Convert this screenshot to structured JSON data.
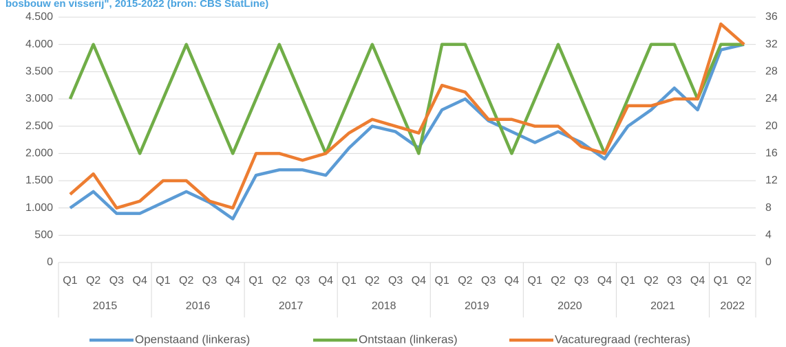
{
  "chart_data": {
    "type": "line",
    "title": "bosbouw en visserij\", 2015-2022 (bron: CBS StatLine)",
    "categories": [
      "Q1",
      "Q2",
      "Q3",
      "Q4",
      "Q1",
      "Q2",
      "Q3",
      "Q4",
      "Q1",
      "Q2",
      "Q3",
      "Q4",
      "Q1",
      "Q2",
      "Q3",
      "Q4",
      "Q1",
      "Q2",
      "Q3",
      "Q4",
      "Q1",
      "Q2",
      "Q3",
      "Q4",
      "Q1",
      "Q2",
      "Q3",
      "Q4",
      "Q1",
      "Q2"
    ],
    "groups": [
      "2015",
      "2016",
      "2017",
      "2018",
      "2019",
      "2020",
      "2021",
      "2022"
    ],
    "series": [
      {
        "name": "Openstaand (linkeras)",
        "color": "#5b9bd5",
        "values": [
          1000,
          1300,
          900,
          900,
          1100,
          1300,
          1100,
          800,
          1600,
          1700,
          1700,
          1600,
          2100,
          2500,
          2400,
          2100,
          2800,
          3000,
          2600,
          2400,
          2200,
          2400,
          2200,
          1900,
          2500,
          2800,
          3200,
          2800,
          3900,
          4000
        ]
      },
      {
        "name": "Ontstaan (linkeras)",
        "color": "#70ad47",
        "values": [
          3000,
          4000,
          3000,
          2000,
          3000,
          4000,
          3000,
          2000,
          3000,
          4000,
          3000,
          2000,
          3000,
          4000,
          3000,
          2000,
          4000,
          4000,
          3000,
          2000,
          3000,
          4000,
          3000,
          2000,
          3000,
          4000,
          4000,
          3000,
          4000,
          4000
        ]
      },
      {
        "name": "Vacaturegraad (rechteras)",
        "color": "#ed7d31",
        "axis": "y2",
        "values": [
          10,
          13,
          8,
          9,
          12,
          12,
          9,
          8,
          16,
          16,
          15,
          16,
          19,
          21,
          20,
          19,
          26,
          25,
          21,
          21,
          20,
          20,
          17,
          16,
          23,
          23,
          24,
          24,
          35,
          32
        ]
      }
    ],
    "ylim": [
      0,
      4500
    ],
    "yticks": [
      0,
      500,
      {
        "value": 1000,
        "label": "1.000"
      },
      {
        "value": 1500,
        "label": "1.500"
      },
      {
        "value": 2000,
        "label": "2.000"
      },
      {
        "value": 2500,
        "label": "2.500"
      },
      {
        "value": 3000,
        "label": "3.000"
      },
      {
        "value": 3500,
        "label": "3.500"
      },
      {
        "value": 4000,
        "label": "4.000"
      },
      {
        "value": 4500,
        "label": "4.500"
      }
    ],
    "y2lim": [
      0,
      36
    ],
    "y2ticks": [
      0,
      4,
      8,
      12,
      16,
      20,
      24,
      28,
      32,
      36
    ],
    "grid": true,
    "legend": "bottom"
  }
}
